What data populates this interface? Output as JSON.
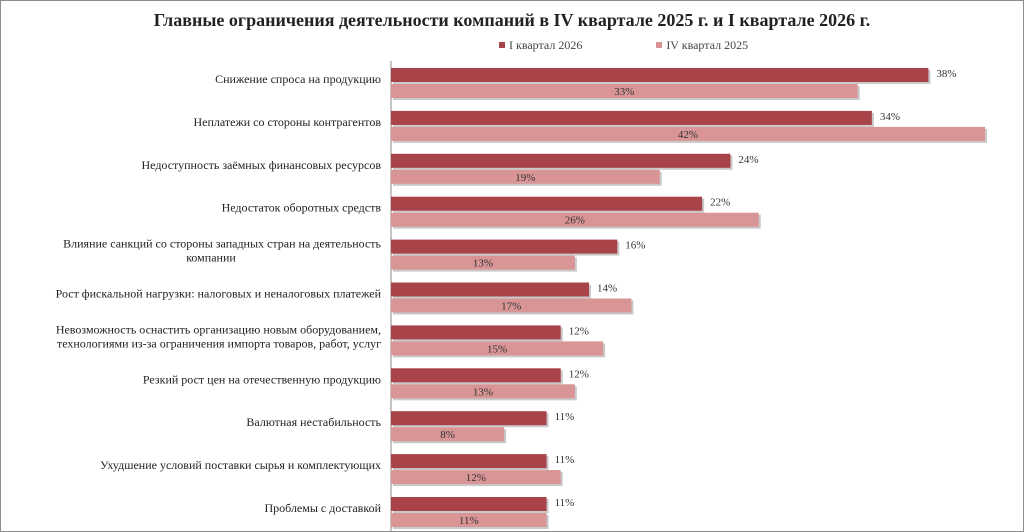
{
  "chart_data": {
    "type": "bar",
    "orientation": "horizontal",
    "title": "Главные ограничения деятельности компаний в IV квартале 2025 г. и I квартале 2026 г.",
    "legend_position": "top",
    "xlim": [
      0,
      42
    ],
    "grid": false,
    "categories": [
      [
        "Снижение спроса на продукцию"
      ],
      [
        "Неплатежи со стороны контрагентов"
      ],
      [
        "Недоступность заёмных финансовых ресурсов"
      ],
      [
        "Недостаток оборотных средств"
      ],
      [
        "Влияние санкций со стороны западных стран на деятельность",
        "компании"
      ],
      [
        "Рост фискальной нагрузки: налоговых и неналоговых платежей"
      ],
      [
        "Невозможность оснастить организацию новым оборудованием,",
        "технологиями из-за ограничения импорта товаров, работ, услуг"
      ],
      [
        "Резкий рост цен на отечественную продукцию"
      ],
      [
        "Валютная нестабильность"
      ],
      [
        "Ухудшение условий поставки сырья и комплектующих"
      ],
      [
        "Проблемы с доставкой"
      ]
    ],
    "series": [
      {
        "name": "I квартал 2026",
        "color": "#a8434a",
        "values": [
          38,
          34,
          24,
          22,
          16,
          14,
          12,
          12,
          11,
          11,
          11
        ],
        "labels": [
          "38%",
          "34%",
          "24%",
          "22%",
          "16%",
          "14%",
          "12%",
          "12%",
          "11%",
          "11%",
          "11%"
        ]
      },
      {
        "name": "IV квартал 2025",
        "color": "#d99596",
        "values": [
          33,
          42,
          19,
          26,
          13,
          17,
          15,
          13,
          8,
          12,
          11
        ],
        "labels": [
          "33%",
          "42%",
          "19%",
          "26%",
          "13%",
          "17%",
          "15%",
          "13%",
          "8%",
          "12%",
          "11%"
        ]
      }
    ]
  }
}
